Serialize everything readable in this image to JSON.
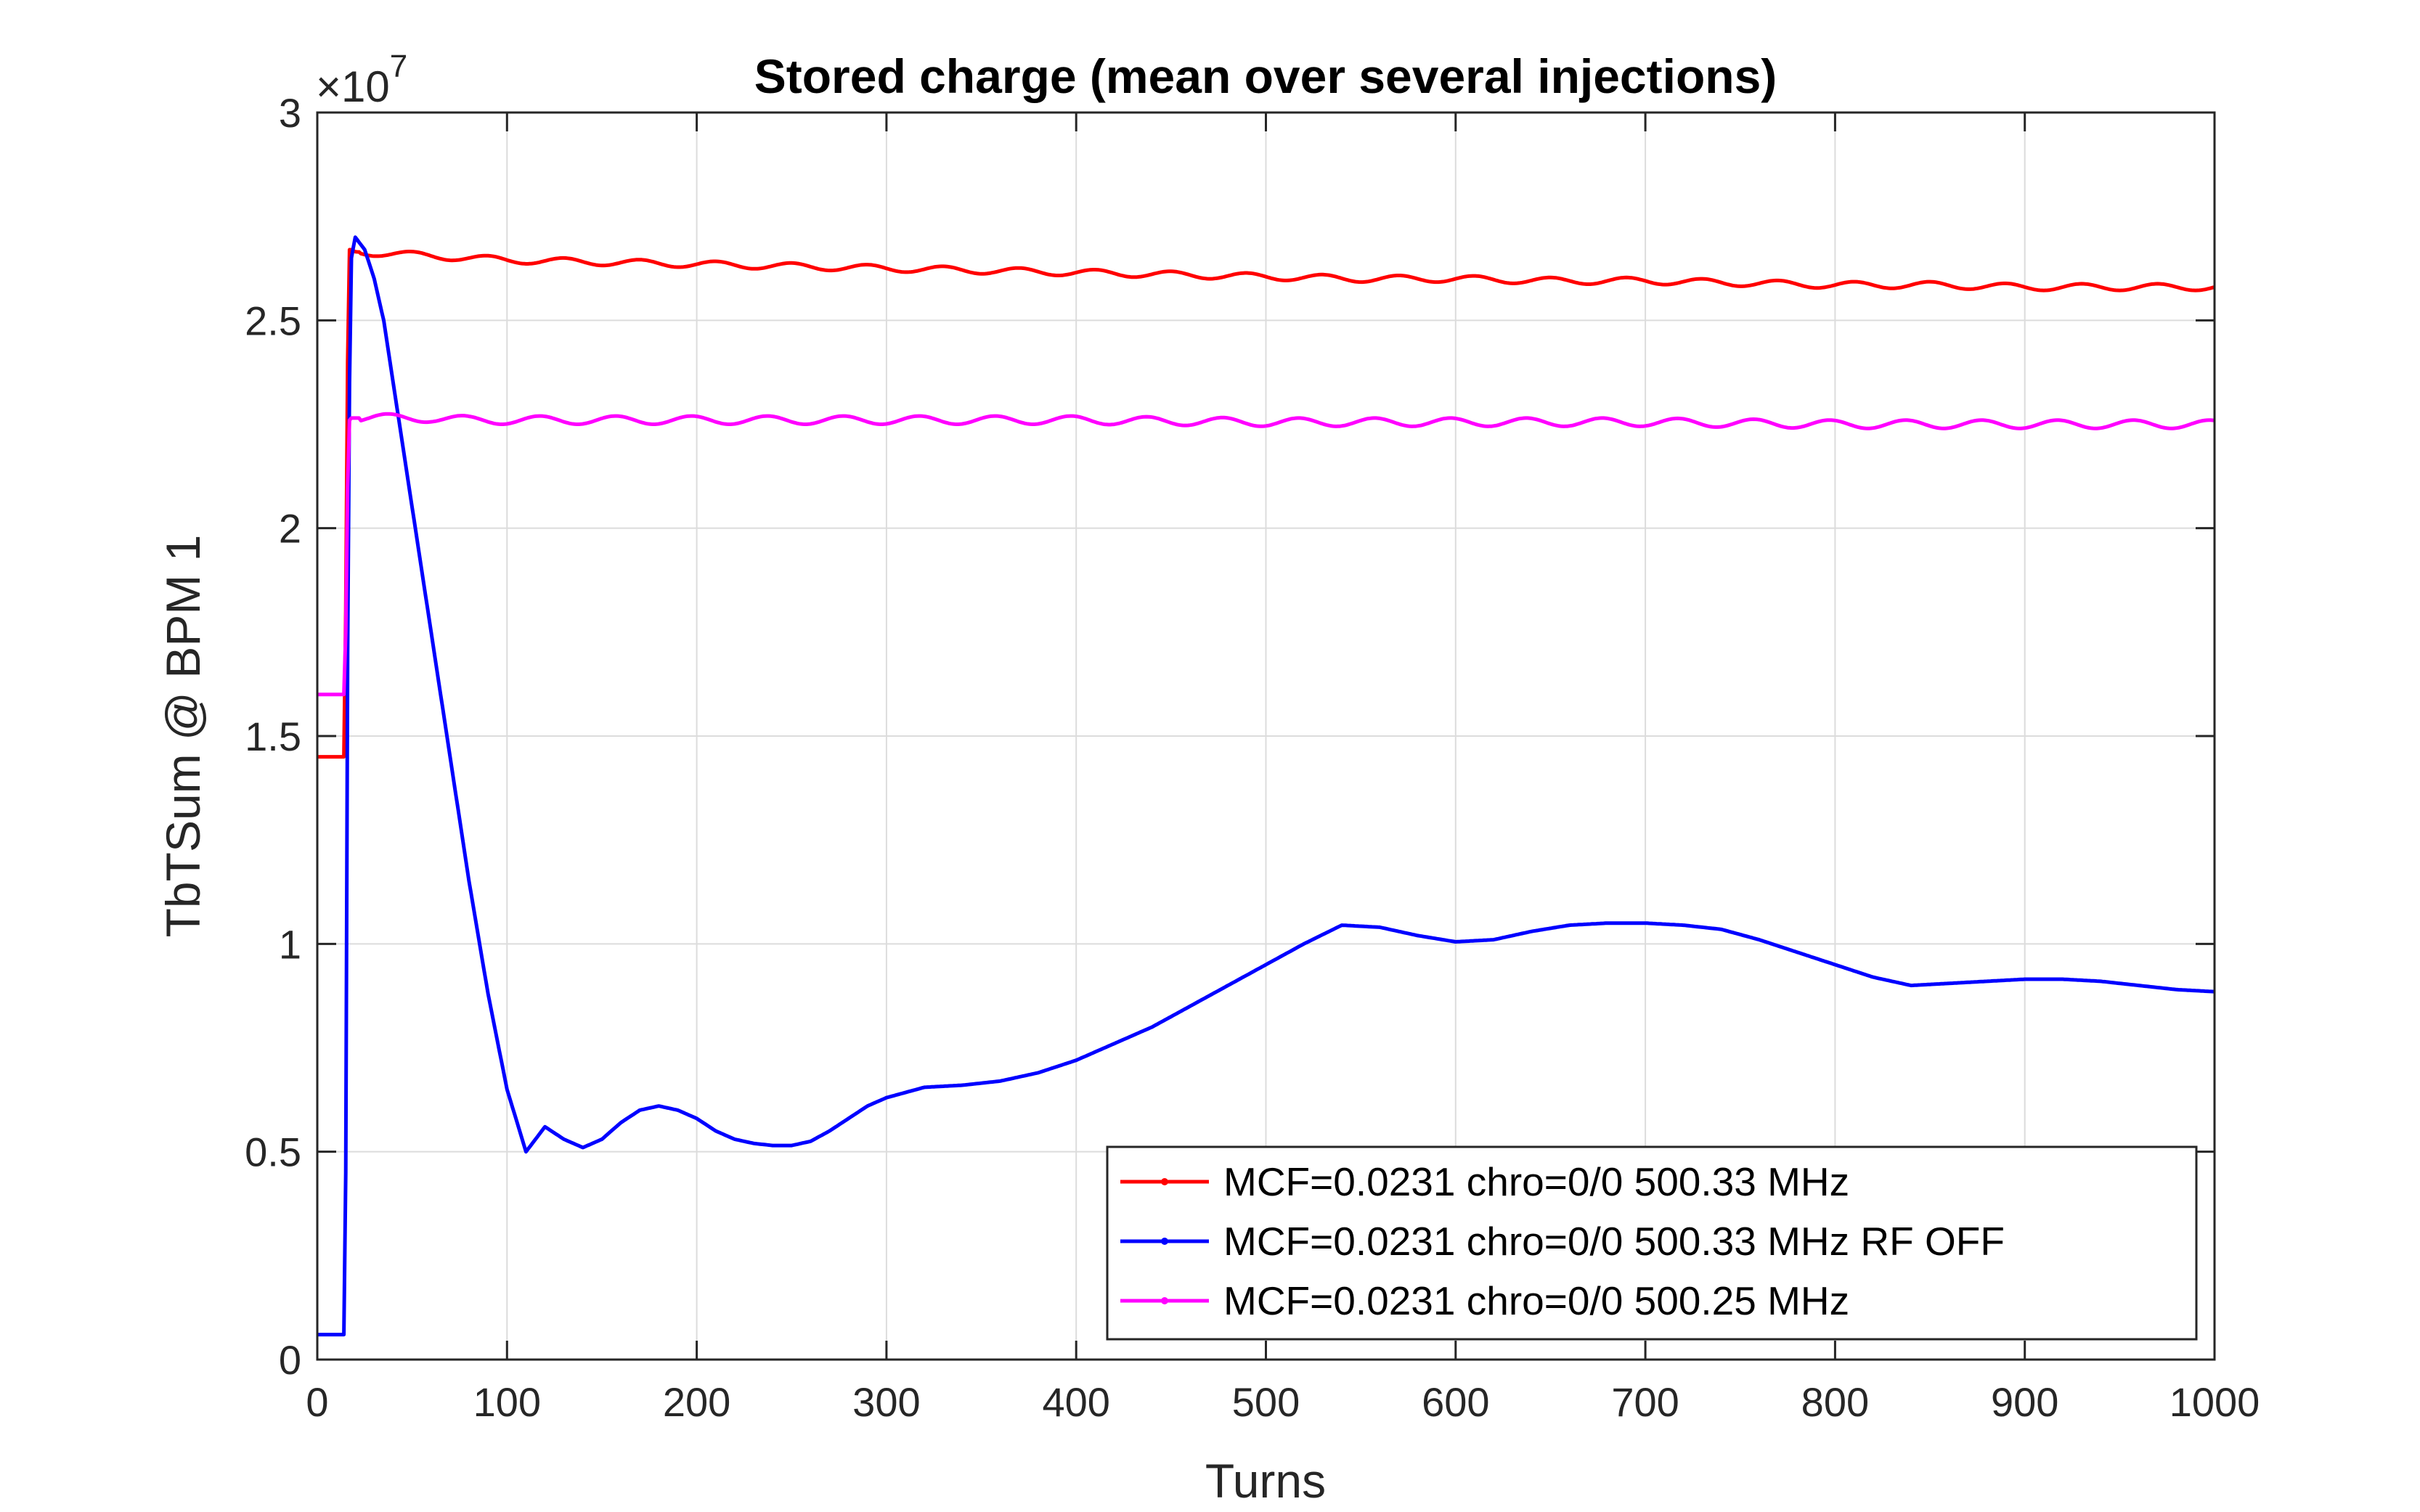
{
  "chart_data": {
    "type": "line",
    "title": "Stored charge (mean over several injections)",
    "xlabel": "Turns",
    "ylabel": "TbTSum @ BPM 1",
    "y_exponent_label": {
      "base": "×10",
      "exp": "7"
    },
    "xlim": [
      0,
      1000
    ],
    "ylim": [
      0,
      3
    ],
    "y_scale_factor": 10000000,
    "xticks": [
      0,
      100,
      200,
      300,
      400,
      500,
      600,
      700,
      800,
      900,
      1000
    ],
    "xtick_labels": [
      "0",
      "100",
      "200",
      "300",
      "400",
      "500",
      "600",
      "700",
      "800",
      "900",
      "1000"
    ],
    "yticks": [
      0,
      0.5,
      1,
      1.5,
      2,
      2.5,
      3
    ],
    "ytick_labels": [
      "0",
      "0.5",
      "1",
      "1.5",
      "2",
      "2.5",
      "3"
    ],
    "grid": true,
    "legend_position": "bottom-right",
    "series": [
      {
        "name": "MCF=0.0231 chro=0/0 500.33 MHz",
        "color": "#ff0000",
        "x": [
          0,
          14,
          15,
          16,
          17,
          18,
          20,
          40,
          60,
          80,
          100,
          150,
          200,
          250,
          300,
          350,
          400,
          450,
          500,
          550,
          600,
          650,
          700,
          750,
          800,
          850,
          900,
          950,
          1000
        ],
        "y": [
          1.45,
          1.45,
          1.8,
          2.4,
          2.67,
          2.67,
          2.665,
          2.66,
          2.655,
          2.65,
          2.645,
          2.64,
          2.635,
          2.63,
          2.625,
          2.62,
          2.615,
          2.61,
          2.605,
          2.6,
          2.6,
          2.595,
          2.595,
          2.59,
          2.585,
          2.585,
          2.58,
          2.58,
          2.58
        ],
        "ripple": {
          "amplitude": 0.008,
          "period": 40
        }
      },
      {
        "name": "MCF=0.0231 chro=0/0 500.33 MHz RF OFF",
        "color": "#0000ff",
        "x": [
          0,
          14,
          15,
          16,
          17,
          18,
          20,
          25,
          30,
          35,
          40,
          50,
          60,
          70,
          80,
          90,
          100,
          110,
          120,
          130,
          140,
          150,
          160,
          170,
          180,
          190,
          200,
          210,
          220,
          230,
          240,
          250,
          260,
          270,
          280,
          290,
          300,
          320,
          340,
          360,
          380,
          400,
          420,
          440,
          460,
          480,
          500,
          520,
          540,
          560,
          580,
          600,
          620,
          640,
          660,
          680,
          700,
          720,
          740,
          760,
          780,
          800,
          820,
          840,
          860,
          880,
          900,
          920,
          940,
          960,
          980,
          1000
        ],
        "y": [
          0.06,
          0.06,
          0.45,
          1.7,
          2.35,
          2.65,
          2.7,
          2.67,
          2.6,
          2.5,
          2.35,
          2.05,
          1.75,
          1.45,
          1.15,
          0.88,
          0.65,
          0.5,
          0.56,
          0.53,
          0.51,
          0.53,
          0.57,
          0.6,
          0.61,
          0.6,
          0.58,
          0.55,
          0.53,
          0.52,
          0.515,
          0.515,
          0.525,
          0.55,
          0.58,
          0.61,
          0.63,
          0.655,
          0.66,
          0.67,
          0.69,
          0.72,
          0.76,
          0.8,
          0.85,
          0.9,
          0.95,
          1.0,
          1.045,
          1.04,
          1.02,
          1.005,
          1.01,
          1.03,
          1.045,
          1.05,
          1.05,
          1.045,
          1.035,
          1.01,
          0.98,
          0.95,
          0.92,
          0.9,
          0.905,
          0.91,
          0.915,
          0.915,
          0.91,
          0.9,
          0.89,
          0.885
        ]
      },
      {
        "name": "MCF=0.0231 chro=0/0 500.25 MHz",
        "color": "#ff00ff",
        "x": [
          0,
          14,
          15,
          16,
          17,
          18,
          20,
          40,
          60,
          80,
          100,
          200,
          300,
          400,
          500,
          600,
          700,
          800,
          900,
          1000
        ],
        "y": [
          1.6,
          1.6,
          1.75,
          2.1,
          2.26,
          2.265,
          2.265,
          2.265,
          2.265,
          2.26,
          2.26,
          2.26,
          2.26,
          2.26,
          2.255,
          2.255,
          2.255,
          2.25,
          2.25,
          2.25
        ],
        "ripple": {
          "amplitude": 0.01,
          "period": 40
        }
      }
    ]
  }
}
